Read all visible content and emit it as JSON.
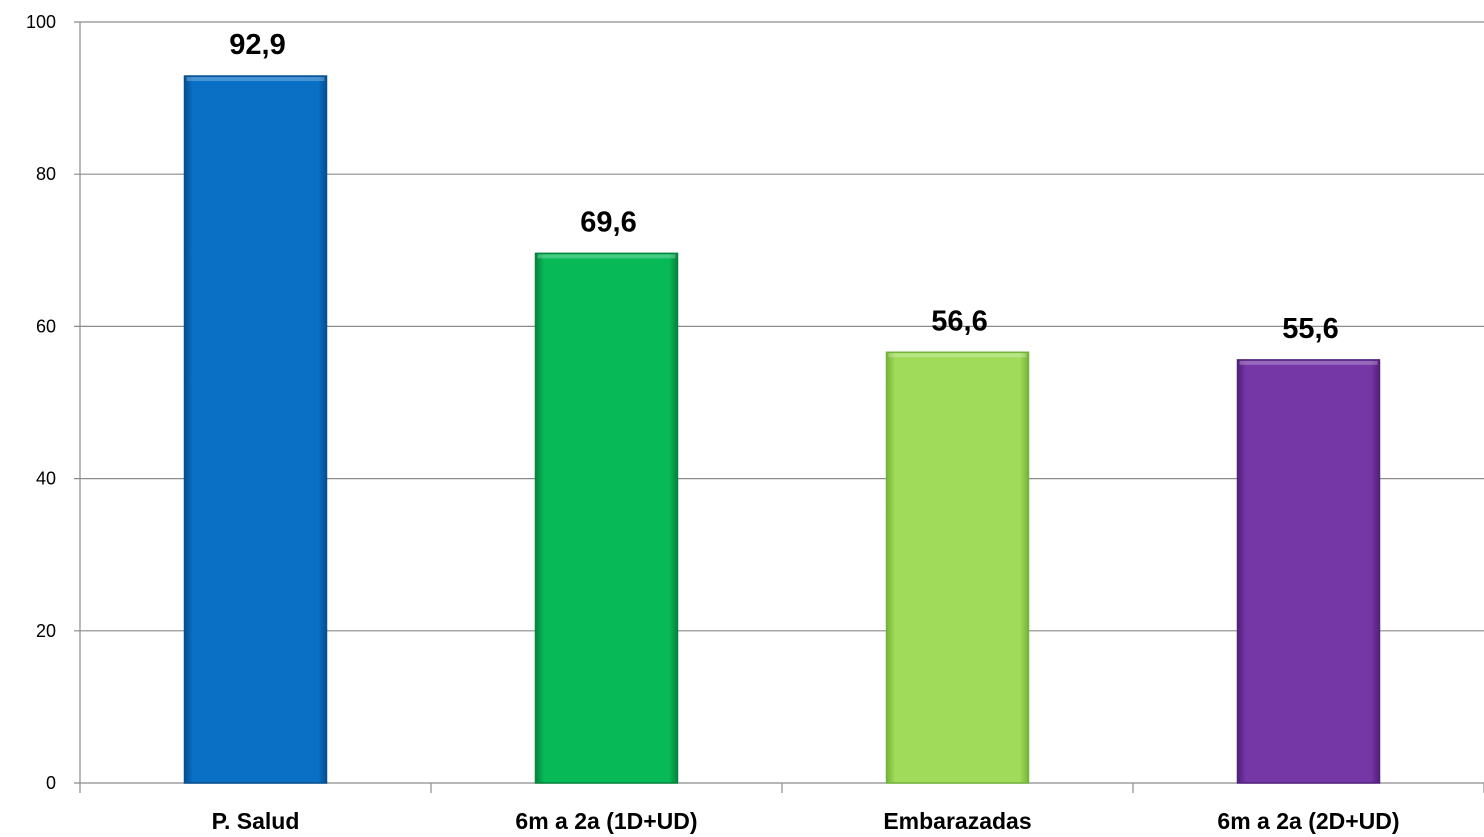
{
  "chart_data": {
    "type": "bar",
    "categories": [
      "P. Salud",
      "6m a 2a (1D+UD)",
      "Embarazadas",
      "6m a 2a (2D+UD)"
    ],
    "values": [
      92.9,
      69.6,
      56.6,
      55.6
    ],
    "data_labels": [
      "92,9",
      "69,6",
      "56,6",
      "55,6"
    ],
    "bar_colors": [
      "#0a70c6",
      "#07b957",
      "#a0dc5a",
      "#7536a6"
    ],
    "bar_colors_dark": [
      "#064f8f",
      "#04843d",
      "#75b23a",
      "#52207a"
    ],
    "title": "",
    "xlabel": "",
    "ylabel": "",
    "ylim": [
      0,
      100
    ],
    "yticks": [
      0,
      20,
      40,
      60,
      80,
      100
    ],
    "grid": true,
    "legend": "none"
  }
}
